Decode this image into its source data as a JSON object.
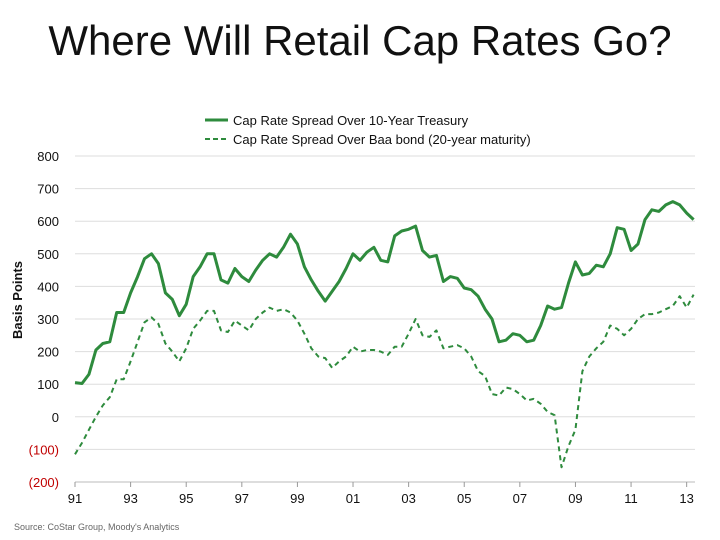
{
  "title": "Where Will Retail Cap Rates Go?",
  "source": "Source: CoStar Group, Moody's Analytics",
  "colors": {
    "series": "#2e8b3d",
    "axis_text": "#111111",
    "negative_text": "#c00000",
    "grid": "#dddddd"
  },
  "chart_data": {
    "type": "line",
    "title": "Where Will Retail Cap Rates Go?",
    "xlabel": "",
    "ylabel": "Basis Points",
    "ylim": [
      -200,
      800
    ],
    "xlim": [
      1991,
      2013.3
    ],
    "yticks": [
      {
        "value": 800,
        "label": "800",
        "negative": false
      },
      {
        "value": 700,
        "label": "700",
        "negative": false
      },
      {
        "value": 600,
        "label": "600",
        "negative": false
      },
      {
        "value": 500,
        "label": "500",
        "negative": false
      },
      {
        "value": 400,
        "label": "400",
        "negative": false
      },
      {
        "value": 300,
        "label": "300",
        "negative": false
      },
      {
        "value": 200,
        "label": "200",
        "negative": false
      },
      {
        "value": 100,
        "label": "100",
        "negative": false
      },
      {
        "value": 0,
        "label": "0",
        "negative": false
      },
      {
        "value": -100,
        "label": "(100)",
        "negative": true
      },
      {
        "value": -200,
        "label": "(200)",
        "negative": true
      }
    ],
    "xticks": [
      {
        "value": 1991,
        "label": "91"
      },
      {
        "value": 1993,
        "label": "93"
      },
      {
        "value": 1995,
        "label": "95"
      },
      {
        "value": 1997,
        "label": "97"
      },
      {
        "value": 1999,
        "label": "99"
      },
      {
        "value": 2001,
        "label": "01"
      },
      {
        "value": 2003,
        "label": "03"
      },
      {
        "value": 2005,
        "label": "05"
      },
      {
        "value": 2007,
        "label": "07"
      },
      {
        "value": 2009,
        "label": "09"
      },
      {
        "value": 2011,
        "label": "11"
      },
      {
        "value": 2013,
        "label": "13"
      }
    ],
    "grid": "horizontal",
    "legend_position": "top",
    "series": [
      {
        "name": "Cap Rate Spread Over 10-Year Treasury",
        "style": "solid",
        "x": [
          1991.0,
          1991.25,
          1991.5,
          1991.75,
          1992.0,
          1992.25,
          1992.5,
          1992.75,
          1993.0,
          1993.25,
          1993.5,
          1993.75,
          1994.0,
          1994.25,
          1994.5,
          1994.75,
          1995.0,
          1995.25,
          1995.5,
          1995.75,
          1996.0,
          1996.25,
          1996.5,
          1996.75,
          1997.0,
          1997.25,
          1997.5,
          1997.75,
          1998.0,
          1998.25,
          1998.5,
          1998.75,
          1999.0,
          1999.25,
          1999.5,
          1999.75,
          2000.0,
          2000.25,
          2000.5,
          2000.75,
          2001.0,
          2001.25,
          2001.5,
          2001.75,
          2002.0,
          2002.25,
          2002.5,
          2002.75,
          2003.0,
          2003.25,
          2003.5,
          2003.75,
          2004.0,
          2004.25,
          2004.5,
          2004.75,
          2005.0,
          2005.25,
          2005.5,
          2005.75,
          2006.0,
          2006.25,
          2006.5,
          2006.75,
          2007.0,
          2007.25,
          2007.5,
          2007.75,
          2008.0,
          2008.25,
          2008.5,
          2008.75,
          2009.0,
          2009.25,
          2009.5,
          2009.75,
          2010.0,
          2010.25,
          2010.5,
          2010.75,
          2011.0,
          2011.25,
          2011.5,
          2011.75,
          2012.0,
          2012.25,
          2012.5,
          2012.75,
          2013.0,
          2013.25
        ],
        "values": [
          105,
          102,
          130,
          205,
          225,
          230,
          320,
          320,
          380,
          430,
          485,
          500,
          470,
          380,
          360,
          310,
          345,
          430,
          460,
          500,
          500,
          420,
          410,
          455,
          430,
          415,
          450,
          480,
          500,
          490,
          520,
          560,
          530,
          460,
          420,
          385,
          355,
          385,
          415,
          455,
          500,
          480,
          505,
          520,
          480,
          475,
          555,
          570,
          575,
          585,
          510,
          490,
          495,
          415,
          430,
          425,
          395,
          390,
          370,
          330,
          300,
          230,
          235,
          255,
          250,
          230,
          235,
          280,
          340,
          330,
          335,
          410,
          475,
          435,
          440,
          465,
          460,
          500,
          580,
          575,
          510,
          530,
          605,
          635,
          630,
          650,
          660,
          650,
          625,
          605
        ]
      },
      {
        "name": "Cap Rate Spread Over Baa bond (20-year maturity)",
        "style": "dashed",
        "x": [
          1991.0,
          1991.25,
          1991.5,
          1991.75,
          1992.0,
          1992.25,
          1992.5,
          1992.75,
          1993.0,
          1993.25,
          1993.5,
          1993.75,
          1994.0,
          1994.25,
          1994.5,
          1994.75,
          1995.0,
          1995.25,
          1995.5,
          1995.75,
          1996.0,
          1996.25,
          1996.5,
          1996.75,
          1997.0,
          1997.25,
          1997.5,
          1997.75,
          1998.0,
          1998.25,
          1998.5,
          1998.75,
          1999.0,
          1999.25,
          1999.5,
          1999.75,
          2000.0,
          2000.25,
          2000.5,
          2000.75,
          2001.0,
          2001.25,
          2001.5,
          2001.75,
          2002.0,
          2002.25,
          2002.5,
          2002.75,
          2003.0,
          2003.25,
          2003.5,
          2003.75,
          2004.0,
          2004.25,
          2004.5,
          2004.75,
          2005.0,
          2005.25,
          2005.5,
          2005.75,
          2006.0,
          2006.25,
          2006.5,
          2006.75,
          2007.0,
          2007.25,
          2007.5,
          2007.75,
          2008.0,
          2008.25,
          2008.5,
          2008.75,
          2009.0,
          2009.25,
          2009.5,
          2009.75,
          2010.0,
          2010.25,
          2010.5,
          2010.75,
          2011.0,
          2011.25,
          2011.5,
          2011.75,
          2012.0,
          2012.25,
          2012.5,
          2012.75,
          2013.0,
          2013.25
        ],
        "values": [
          -115,
          -80,
          -40,
          0,
          35,
          60,
          115,
          115,
          170,
          230,
          290,
          305,
          285,
          225,
          200,
          170,
          210,
          270,
          295,
          325,
          325,
          265,
          260,
          295,
          280,
          265,
          300,
          320,
          335,
          325,
          330,
          320,
          295,
          255,
          210,
          185,
          180,
          150,
          170,
          185,
          215,
          200,
          205,
          205,
          200,
          190,
          215,
          215,
          255,
          300,
          250,
          245,
          265,
          210,
          215,
          220,
          210,
          185,
          140,
          125,
          70,
          65,
          90,
          85,
          70,
          50,
          55,
          40,
          15,
          5,
          -155,
          -90,
          -40,
          140,
          185,
          210,
          230,
          280,
          270,
          250,
          270,
          300,
          315,
          315,
          320,
          330,
          340,
          370,
          335,
          375
        ]
      }
    ]
  }
}
